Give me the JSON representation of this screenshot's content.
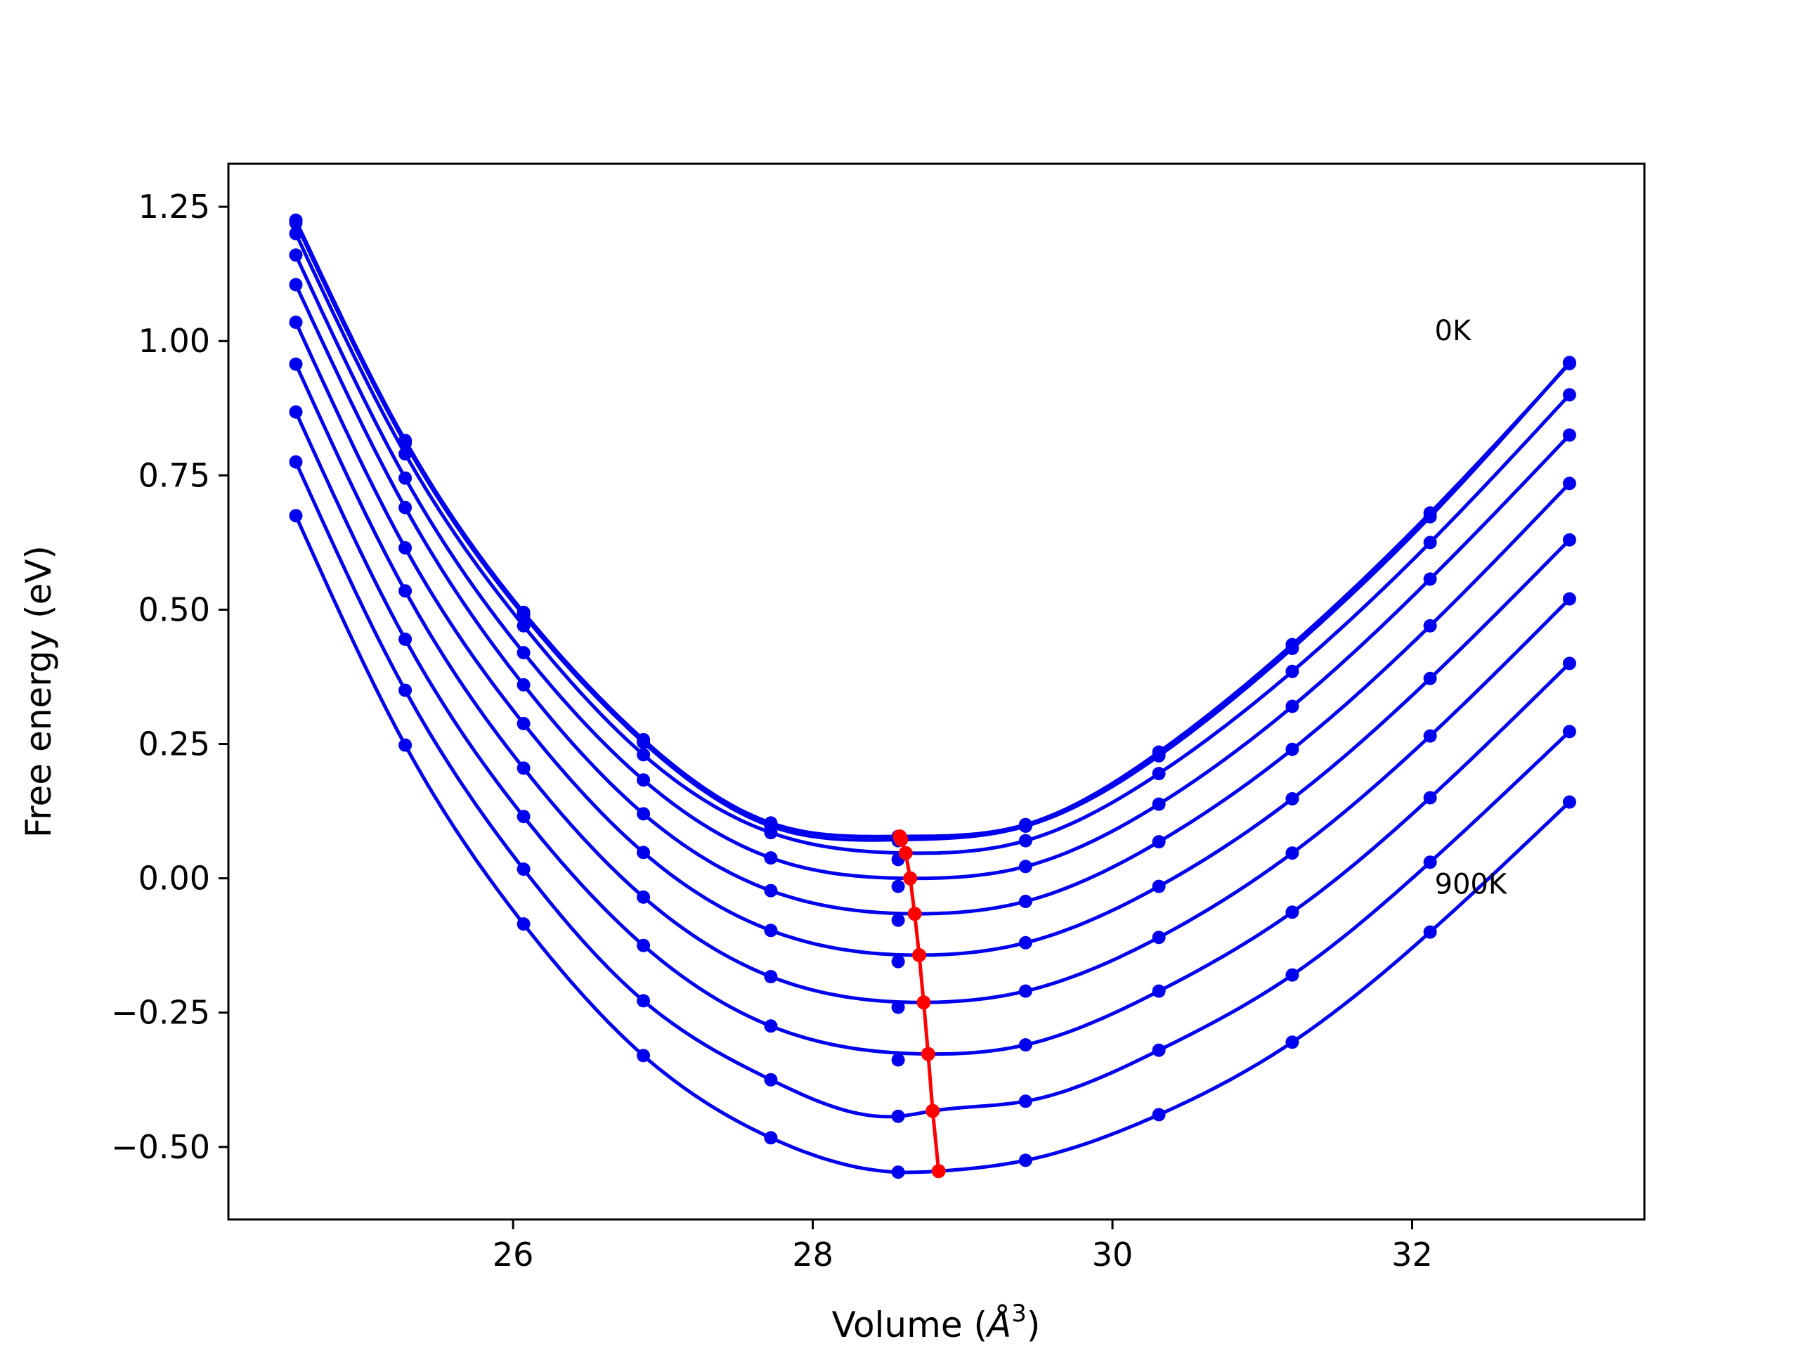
{
  "chart_data": {
    "type": "line",
    "title": "",
    "xlabel": "Volume (",
    "xlabel_symbol": "Å",
    "xlabel_power": "3",
    "xlabel_close": ")",
    "ylabel": "Free energy (eV)",
    "xlim": [
      24.1,
      33.55
    ],
    "ylim": [
      -0.635,
      1.33
    ],
    "xticks": [
      26,
      28,
      30,
      32
    ],
    "xtick_labels": [
      "26",
      "28",
      "30",
      "32"
    ],
    "yticks": [
      1.25,
      1.0,
      0.75,
      0.5,
      0.25,
      0.0,
      -0.25,
      -0.5
    ],
    "ytick_labels": [
      "1.25",
      "1.00",
      "0.75",
      "0.50",
      "0.25",
      "0.00",
      "−0.25",
      "−0.50"
    ],
    "grid": false,
    "curve_color": "#0000ee",
    "minima_color": "#ff0000",
    "annotations": [
      {
        "text": "0K",
        "x": 32.15,
        "y": 1.02
      },
      {
        "text": "900K",
        "x": 32.15,
        "y": -0.01
      }
    ],
    "volumes": [
      24.55,
      25.28,
      26.07,
      26.87,
      27.72,
      28.57,
      29.42,
      30.31,
      31.2,
      32.12,
      33.05
    ],
    "series": [
      {
        "values": [
          1.225,
          0.815,
          0.495,
          0.258,
          0.103,
          0.078,
          0.1,
          0.235,
          0.435,
          0.68,
          0.958
        ],
        "fit_min": [
          28.58,
          0.078
        ]
      },
      {
        "values": [
          1.22,
          0.81,
          0.49,
          0.253,
          0.097,
          0.07,
          0.097,
          0.228,
          0.428,
          0.673,
          0.96
        ],
        "fit_min": [
          28.59,
          0.072
        ]
      },
      {
        "values": [
          1.2,
          0.79,
          0.47,
          0.23,
          0.085,
          0.035,
          0.07,
          0.195,
          0.385,
          0.625,
          0.9
        ],
        "fit_min": [
          28.62,
          0.047
        ]
      },
      {
        "values": [
          1.16,
          0.745,
          0.42,
          0.183,
          0.038,
          -0.015,
          0.022,
          0.138,
          0.32,
          0.557,
          0.825
        ],
        "fit_min": [
          28.65,
          0.0
        ]
      },
      {
        "values": [
          1.105,
          0.69,
          0.36,
          0.12,
          -0.023,
          -0.078,
          -0.043,
          0.068,
          0.24,
          0.47,
          0.735
        ],
        "fit_min": [
          28.68,
          -0.066
        ]
      },
      {
        "values": [
          1.035,
          0.615,
          0.288,
          0.048,
          -0.097,
          -0.155,
          -0.12,
          -0.015,
          0.148,
          0.372,
          0.63
        ],
        "fit_min": [
          28.71,
          -0.143
        ]
      },
      {
        "values": [
          0.957,
          0.535,
          0.205,
          -0.035,
          -0.183,
          -0.24,
          -0.21,
          -0.11,
          0.047,
          0.265,
          0.52
        ],
        "fit_min": [
          28.74,
          -0.231
        ]
      },
      {
        "values": [
          0.868,
          0.445,
          0.115,
          -0.125,
          -0.275,
          -0.338,
          -0.31,
          -0.21,
          -0.063,
          0.15,
          0.4
        ],
        "fit_min": [
          28.77,
          -0.327
        ]
      },
      {
        "values": [
          0.775,
          0.35,
          0.017,
          -0.228,
          -0.375,
          -0.443,
          -0.415,
          -0.32,
          -0.18,
          0.03,
          0.273
        ],
        "fit_min": [
          28.8,
          -0.433
        ]
      },
      {
        "values": [
          0.675,
          0.248,
          -0.085,
          -0.33,
          -0.483,
          -0.547,
          -0.525,
          -0.44,
          -0.305,
          -0.1,
          0.142
        ],
        "fit_min": [
          28.84,
          -0.545
        ]
      }
    ],
    "minima": {
      "x": [
        28.58,
        28.59,
        28.62,
        28.65,
        28.68,
        28.71,
        28.74,
        28.77,
        28.8,
        28.84
      ],
      "y": [
        0.078,
        0.072,
        0.047,
        0.0,
        -0.066,
        -0.143,
        -0.231,
        -0.327,
        -0.433,
        -0.545
      ]
    }
  }
}
